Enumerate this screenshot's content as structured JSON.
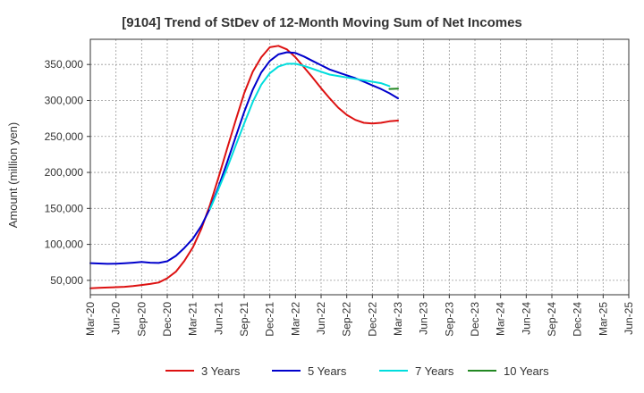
{
  "chart_data": {
    "type": "line",
    "title": "[9104]  Trend of StDev of 12-Month Moving Sum of Net Incomes",
    "ylabel": "Amount (million yen)",
    "xlabel": "",
    "ylim": [
      30000,
      385000
    ],
    "y_ticks": [
      50000,
      100000,
      150000,
      200000,
      250000,
      300000,
      350000
    ],
    "y_tick_labels": [
      "50,000",
      "100,000",
      "150,000",
      "200,000",
      "250,000",
      "300,000",
      "350,000"
    ],
    "x_tick_labels": [
      "Mar-20",
      "Jun-20",
      "Sep-20",
      "Dec-20",
      "Mar-21",
      "Jun-21",
      "Sep-21",
      "Dec-21",
      "Mar-22",
      "Jun-22",
      "Sep-22",
      "Dec-22",
      "Mar-23",
      "Jun-23",
      "Sep-23",
      "Dec-23",
      "Mar-24",
      "Jun-24",
      "Sep-24",
      "Dec-24",
      "Mar-25",
      "Jun-25"
    ],
    "grid": true,
    "legend_position": "bottom",
    "series": [
      {
        "name": "3 Years",
        "color": "#dd1111",
        "start_index": 0,
        "values": [
          39000,
          39500,
          40000,
          40500,
          41000,
          42000,
          43500,
          45000,
          47000,
          53000,
          62000,
          77000,
          96000,
          122000,
          155000,
          193000,
          233000,
          272000,
          310000,
          340000,
          360000,
          374000,
          376000,
          371000,
          360000,
          346000,
          332000,
          317000,
          303000,
          290000,
          280000,
          273000,
          269000,
          268000,
          269000,
          271000,
          272000
        ]
      },
      {
        "name": "5 Years",
        "color": "#0000cc",
        "start_index": 0,
        "values": [
          74000,
          73500,
          73000,
          73200,
          73800,
          74500,
          75500,
          74500,
          74200,
          76500,
          84000,
          95000,
          108000,
          126000,
          150000,
          180000,
          214000,
          249000,
          284000,
          315000,
          339000,
          355000,
          364000,
          367000,
          366000,
          361000,
          355000,
          349000,
          343000,
          339000,
          335000,
          331000,
          326000,
          321000,
          316000,
          310000,
          303000
        ]
      },
      {
        "name": "7 Years",
        "color": "#00dddd",
        "start_index": 14,
        "values": [
          149000,
          177000,
          206000,
          237000,
          268000,
          298000,
          322000,
          338000,
          347000,
          351000,
          351000,
          348000,
          344000,
          340000,
          336000,
          334000,
          332000,
          330000,
          328000,
          326000,
          324000,
          320000
        ]
      },
      {
        "name": "10 Years",
        "color": "#228822",
        "start_index": 35,
        "values": [
          316000,
          316500
        ]
      }
    ]
  }
}
